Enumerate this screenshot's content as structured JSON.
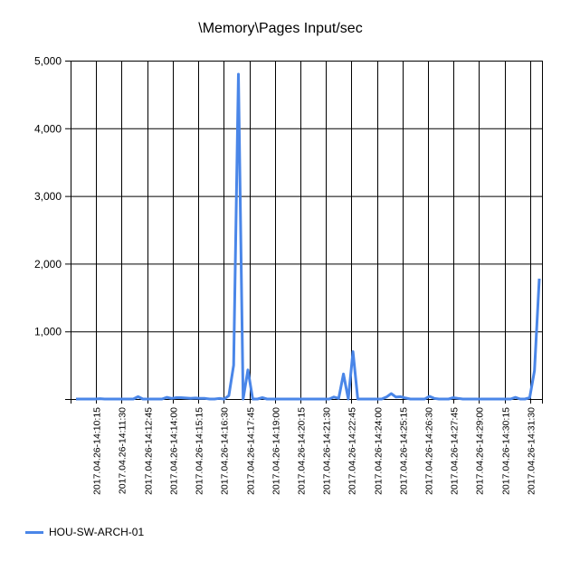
{
  "chart_data": {
    "type": "line",
    "title": "\\Memory\\Pages Input/sec",
    "ylim": [
      0,
      5000
    ],
    "yticks": [
      0,
      1000,
      2000,
      3000,
      4000,
      5000
    ],
    "ytick_labels": [
      "",
      "1,000",
      "2,000",
      "3,000",
      "4,000",
      "5,000"
    ],
    "xtick_labels": [
      "2017.04.26-14:10:15",
      "2017.04.26-14:11:30",
      "2017.04.26-14:12:45",
      "2017.04.26-14:14:00",
      "2017.04.26-14:15:15",
      "2017.04.26-14:16:30",
      "2017.04.26-14:17:45",
      "2017.04.26-14:19:00",
      "2017.04.26-14:20:15",
      "2017.04.26-14:21:30",
      "2017.04.26-14:22:45",
      "2017.04.26-14:24:00",
      "2017.04.26-14:25:15",
      "2017.04.26-14:26:30",
      "2017.04.26-14:27:45",
      "2017.04.26-14:29:00",
      "2017.04.26-14:30:15",
      "2017.04.26-14:31:30"
    ],
    "grid": true,
    "legend_position": "bottom-left",
    "series": [
      {
        "name": "HOU-SW-ARCH-01",
        "color": "#4a86e8",
        "values": [
          0,
          0,
          0,
          0,
          0,
          5,
          0,
          0,
          0,
          0,
          0,
          0,
          0,
          35,
          0,
          0,
          0,
          0,
          0,
          25,
          10,
          20,
          20,
          15,
          10,
          15,
          10,
          10,
          0,
          0,
          10,
          0,
          50,
          500,
          4800,
          0,
          430,
          0,
          0,
          20,
          0,
          0,
          0,
          0,
          0,
          0,
          0,
          0,
          0,
          0,
          0,
          0,
          0,
          0,
          30,
          10,
          370,
          0,
          700,
          0,
          0,
          0,
          0,
          0,
          0,
          30,
          80,
          30,
          35,
          15,
          0,
          0,
          0,
          0,
          40,
          10,
          0,
          0,
          0,
          20,
          10,
          0,
          0,
          0,
          0,
          0,
          0,
          0,
          0,
          0,
          0,
          0,
          25,
          0,
          0,
          20,
          420,
          1780
        ]
      }
    ]
  }
}
